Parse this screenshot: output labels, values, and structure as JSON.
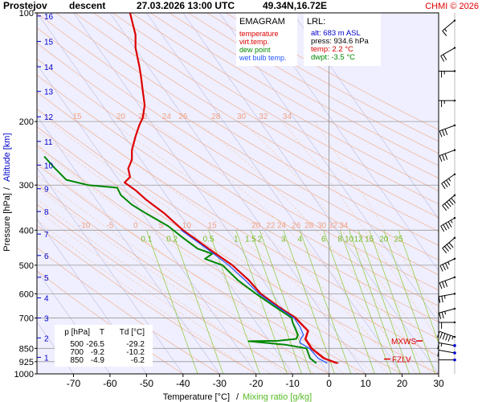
{
  "header": {
    "station": "Prostejov",
    "phase": "descent",
    "datetime": "27.03.2026 13:00 UTC",
    "coords": "49.34N,16.72E",
    "copyright": "CHMI © 2026"
  },
  "legend": {
    "title": "EMAGRAM",
    "items": [
      {
        "label": "temperature",
        "color": "#dd0000"
      },
      {
        "label": "virt.temp.",
        "color": "#dd0000"
      },
      {
        "label": "dew point",
        "color": "#008800"
      },
      {
        "label": "wet bulb temp.",
        "color": "#2255ff"
      }
    ]
  },
  "lrl": {
    "title": "LRL:",
    "alt": "alt: 683 m ASL",
    "press": "press: 934.6 hPa",
    "temp": "temp: 2.2 °C",
    "dwpt": "dwpt: -3.5 °C"
  },
  "table": {
    "header": [
      "p [hPa]",
      "T",
      "Td [°C]"
    ],
    "rows": [
      [
        "500",
        "-26.5",
        "-29.2"
      ],
      [
        "700",
        "-9.2",
        "-10.2"
      ],
      [
        "850",
        "-4.9",
        "-6.2"
      ]
    ]
  },
  "markers": {
    "mxws": "MXWS",
    "fzlv": "FZLV"
  },
  "colors": {
    "plot_bg": "#efefff",
    "temperature": "#dd0000",
    "dewpoint": "#008800",
    "wetbulb": "#2255ff",
    "isobar": "#999999",
    "isotherm": "#bbbbdd",
    "dry_adiabat": "#f2b08f",
    "moist_adiabat": "#f7c7a8",
    "mixing_ratio": "#99cc44",
    "altitude_label": "#0000cc",
    "wind": "#000000"
  },
  "chart_data": {
    "type": "line",
    "title": "Prostejov descent 27.03.2026 13:00 UTC 49.34N,16.72E",
    "xlabel": "Temperature [°C]",
    "xlabel_extra": "Mixing ratio [g/kg]",
    "ylabel": "Pressure [hPa]",
    "ylabel_extra": "Altitude [km]",
    "xlim": [
      -80,
      30
    ],
    "ylim": [
      1000,
      100
    ],
    "y_scale": "log",
    "grid": true,
    "x_ticks": [
      -70,
      -60,
      -50,
      -40,
      -30,
      -20,
      -10,
      0,
      10,
      20,
      30
    ],
    "pressure_ticks": [
      100,
      200,
      300,
      400,
      500,
      600,
      700,
      850,
      925,
      1000
    ],
    "pressure_tick_labels": [
      "100",
      "200",
      "300",
      "400",
      "500",
      "600",
      "700",
      "850",
      "925",
      "1000"
    ],
    "altitude_ticks_km": [
      1,
      2,
      3,
      4,
      5,
      6,
      7,
      8,
      9,
      10,
      11,
      12,
      13,
      14,
      15,
      16
    ],
    "altitude_tick_pressures": [
      900,
      795,
      700,
      616,
      540,
      470,
      410,
      355,
      307,
      264,
      227,
      194,
      165,
      141,
      120,
      102
    ],
    "moist_adiabat_labels_200": [
      "15",
      "20",
      "22",
      "24",
      "26",
      "28",
      "30",
      "32",
      "34"
    ],
    "moist_adiabat_label_T_200": [
      -69,
      -57,
      -51,
      -44.5,
      -40,
      -31,
      -24,
      -18,
      -11.5
    ],
    "moist_adiabat_labels_400": [
      "-10",
      "-5",
      "0",
      "5",
      "10",
      "15",
      "20",
      "22",
      "24",
      "26",
      "28",
      "30",
      "32",
      "34"
    ],
    "moist_adiabat_label_T_400": [
      -67,
      -60,
      -53,
      -46,
      -39,
      -32,
      -20,
      -16,
      -13,
      -9,
      -5.5,
      -2,
      1,
      4
    ],
    "mixing_ratio_labels": [
      "0.1",
      "0.2",
      "0.5",
      "1",
      "1.5",
      "2",
      "3",
      "4",
      "6",
      "8",
      "10",
      "12",
      "15",
      "20",
      "25"
    ],
    "mixing_ratio_label_T": [
      -50,
      -43,
      -33,
      -25.5,
      -21.5,
      -19,
      -12.5,
      -8,
      -1.5,
      3,
      5.5,
      8,
      11,
      15,
      19
    ],
    "series": [
      {
        "name": "temperature",
        "points": [
          [
            2.2,
            934.6
          ],
          [
            -1.5,
            905
          ],
          [
            -4.9,
            850
          ],
          [
            -6.5,
            800
          ],
          [
            -5.8,
            760
          ],
          [
            -7.5,
            730
          ],
          [
            -9.2,
            700
          ],
          [
            -14,
            650
          ],
          [
            -18.7,
            600
          ],
          [
            -22,
            550
          ],
          [
            -26.5,
            500
          ],
          [
            -33,
            450
          ],
          [
            -40,
            400
          ],
          [
            -45,
            360
          ],
          [
            -50,
            330
          ],
          [
            -53,
            310
          ],
          [
            -56,
            295
          ],
          [
            -54.5,
            285
          ],
          [
            -55,
            270
          ],
          [
            -54,
            255
          ],
          [
            -54,
            240
          ],
          [
            -53,
            220
          ],
          [
            -52,
            205
          ],
          [
            -51,
            195
          ],
          [
            -50.5,
            180
          ],
          [
            -51,
            165
          ],
          [
            -51.5,
            150
          ],
          [
            -52,
            140
          ],
          [
            -53,
            125
          ],
          [
            -53,
            115
          ],
          [
            -54,
            105
          ],
          [
            -54.5,
            100
          ]
        ]
      },
      {
        "name": "virt.temp.",
        "points": [
          [
            2.6,
            934.6
          ],
          [
            -1.2,
            905
          ],
          [
            -4.6,
            850
          ],
          [
            -6.3,
            800
          ],
          [
            -5.6,
            760
          ],
          [
            -7.3,
            730
          ],
          [
            -9.0,
            700
          ],
          [
            -13.9,
            650
          ],
          [
            -18.6,
            600
          ],
          [
            -21.9,
            550
          ],
          [
            -26.4,
            500
          ],
          [
            -32.9,
            450
          ],
          [
            -39.9,
            400
          ],
          [
            -45,
            360
          ],
          [
            -50,
            330
          ],
          [
            -53,
            310
          ],
          [
            -56,
            295
          ],
          [
            -54.5,
            285
          ],
          [
            -55,
            270
          ],
          [
            -54,
            255
          ],
          [
            -54,
            240
          ],
          [
            -53,
            220
          ],
          [
            -52,
            205
          ],
          [
            -51,
            195
          ],
          [
            -50.5,
            180
          ],
          [
            -51,
            165
          ],
          [
            -51.5,
            150
          ],
          [
            -52,
            140
          ],
          [
            -53,
            125
          ],
          [
            -53,
            115
          ],
          [
            -54,
            105
          ],
          [
            -54.5,
            100
          ]
        ]
      },
      {
        "name": "dew point",
        "points": [
          [
            -3.5,
            934.6
          ],
          [
            -5.2,
            905
          ],
          [
            -6.2,
            850
          ],
          [
            -12,
            830
          ],
          [
            -22,
            812
          ],
          [
            -14,
            810
          ],
          [
            -9,
            800
          ],
          [
            -8.5,
            780
          ],
          [
            -10,
            720
          ],
          [
            -10.2,
            700
          ],
          [
            -15,
            650
          ],
          [
            -20,
            600
          ],
          [
            -25,
            550
          ],
          [
            -29.2,
            500
          ],
          [
            -34,
            480
          ],
          [
            -32,
            465
          ],
          [
            -36,
            450
          ],
          [
            -40,
            420
          ],
          [
            -44,
            390
          ],
          [
            -50,
            360
          ],
          [
            -54,
            340
          ],
          [
            -57,
            320
          ],
          [
            -58,
            305
          ],
          [
            -66,
            300
          ],
          [
            -72,
            290
          ],
          [
            -75,
            270
          ],
          [
            -78,
            250
          ]
        ]
      },
      {
        "name": "wet bulb temp.",
        "points": [
          [
            -0.5,
            934.6
          ],
          [
            -3,
            905
          ],
          [
            -5.4,
            850
          ],
          [
            -8,
            820
          ],
          [
            -7.8,
            800
          ],
          [
            -7,
            780
          ],
          [
            -8,
            740
          ],
          [
            -9.6,
            700
          ],
          [
            -14.4,
            650
          ],
          [
            -19.2,
            600
          ],
          [
            -23,
            550
          ],
          [
            -27.5,
            500
          ],
          [
            -33.5,
            450
          ],
          [
            -40.5,
            400
          ]
        ]
      }
    ],
    "wind_barbs": [
      {
        "p": 105,
        "dir": 230,
        "kt": 15
      },
      {
        "p": 125,
        "dir": 240,
        "kt": 20
      },
      {
        "p": 145,
        "dir": 270,
        "kt": 25
      },
      {
        "p": 175,
        "dir": 270,
        "kt": 25
      },
      {
        "p": 205,
        "dir": 250,
        "kt": 30
      },
      {
        "p": 240,
        "dir": 250,
        "kt": 30
      },
      {
        "p": 280,
        "dir": 235,
        "kt": 35
      },
      {
        "p": 320,
        "dir": 230,
        "kt": 50
      },
      {
        "p": 370,
        "dir": 240,
        "kt": 45
      },
      {
        "p": 420,
        "dir": 230,
        "kt": 40
      },
      {
        "p": 480,
        "dir": 245,
        "kt": 35
      },
      {
        "p": 540,
        "dir": 250,
        "kt": 30
      },
      {
        "p": 600,
        "dir": 260,
        "kt": 25
      },
      {
        "p": 660,
        "dir": 255,
        "kt": 25
      },
      {
        "p": 720,
        "dir": 270,
        "kt": 20
      },
      {
        "p": 790,
        "dir": 290,
        "kt": 55
      },
      {
        "p": 835,
        "dir": 280,
        "kt": 15
      },
      {
        "p": 875,
        "dir": 280,
        "kt": 10
      },
      {
        "p": 915,
        "dir": 270,
        "kt": 5
      }
    ]
  }
}
